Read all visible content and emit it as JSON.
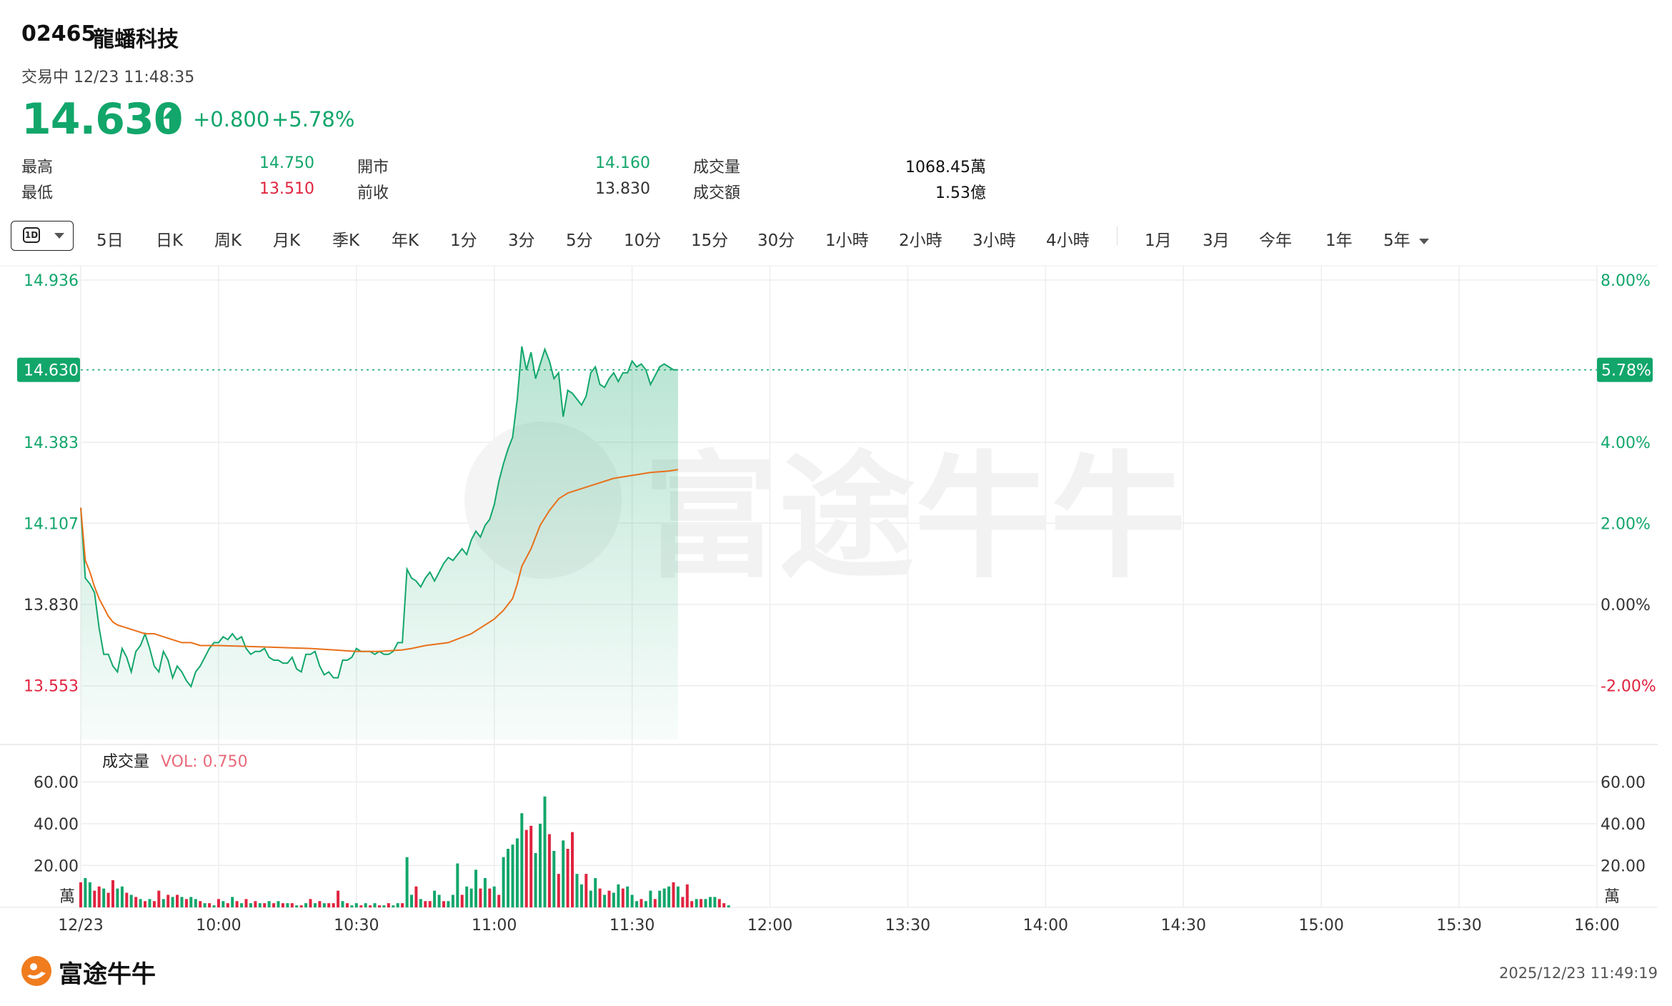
{
  "header": {
    "code": "02465",
    "name": "龍蟠科技",
    "status": "交易中 12/23 11:48:35",
    "price": "14.630",
    "change": "+0.800",
    "change_pct": "+5.78%"
  },
  "stats": [
    {
      "label": "最高",
      "value": "14.750",
      "color": "#12a66b"
    },
    {
      "label": "最低",
      "value": "13.510",
      "color": "#e0243f"
    },
    {
      "label": "開市",
      "value": "14.160",
      "color": "#12a66b"
    },
    {
      "label": "前收",
      "value": "13.830",
      "color": "#333333"
    },
    {
      "label": "成交量",
      "value": "1068.45萬",
      "color": "#111111"
    },
    {
      "label": "成交額",
      "value": "1.53億",
      "color": "#111111"
    }
  ],
  "toolbar": {
    "period_icon": "1D",
    "items": [
      "5日",
      "日K",
      "周K",
      "月K",
      "季K",
      "年K",
      "1分",
      "3分",
      "5分",
      "10分",
      "15分",
      "30分",
      "1小時",
      "2小時",
      "3小時",
      "4小時"
    ],
    "ranges": [
      "1月",
      "3月",
      "今年",
      "1年"
    ],
    "more": "5年"
  },
  "colors": {
    "up": "#12a66b",
    "down": "#e0243f",
    "avg_line": "#e8701a"
  },
  "volume_panel": {
    "label": "成交量",
    "vol_label": "VOL: 0.750",
    "unit": "萬"
  },
  "footer": {
    "logo": "富途牛牛",
    "timestamp": "2025/12/23 11:49:19"
  },
  "chart_data": {
    "type": "line",
    "prev_close": 13.83,
    "last_price": 14.63,
    "last_pct_label": "5.78%",
    "last_price_label": "14.630",
    "y_ticks": [
      14.936,
      14.383,
      14.107,
      13.83,
      13.553
    ],
    "y_tick_labels": [
      "14.936",
      "14.383",
      "14.107",
      "13.830",
      "13.553"
    ],
    "pct_ticks": [
      8.0,
      4.0,
      2.0,
      0.0,
      -2.0
    ],
    "pct_tick_labels": [
      "8.00%",
      "4.00%",
      "2.00%",
      "0.00%",
      "-2.00%"
    ],
    "x_range_minutes": [
      0,
      330
    ],
    "x_ticks": [
      {
        "t": 0,
        "label": "12/23"
      },
      {
        "t": 30,
        "label": "10:00"
      },
      {
        "t": 60,
        "label": "10:30"
      },
      {
        "t": 90,
        "label": "11:00"
      },
      {
        "t": 120,
        "label": "11:30"
      },
      {
        "t": 150,
        "label": "12:00"
      },
      {
        "t": 180,
        "label": "13:30"
      },
      {
        "t": 210,
        "label": "14:00"
      },
      {
        "t": 240,
        "label": "14:30"
      },
      {
        "t": 270,
        "label": "15:00"
      },
      {
        "t": 300,
        "label": "15:30"
      },
      {
        "t": 330,
        "label": "16:00"
      }
    ],
    "price_series": [
      [
        0,
        14.16
      ],
      [
        1,
        13.92
      ],
      [
        2,
        13.9
      ],
      [
        3,
        13.87
      ],
      [
        4,
        13.75
      ],
      [
        5,
        13.66
      ],
      [
        6,
        13.66
      ],
      [
        7,
        13.62
      ],
      [
        8,
        13.6
      ],
      [
        9,
        13.68
      ],
      [
        10,
        13.65
      ],
      [
        11,
        13.6
      ],
      [
        12,
        13.67
      ],
      [
        13,
        13.69
      ],
      [
        14,
        13.73
      ],
      [
        15,
        13.68
      ],
      [
        16,
        13.62
      ],
      [
        17,
        13.6
      ],
      [
        18,
        13.67
      ],
      [
        19,
        13.64
      ],
      [
        20,
        13.58
      ],
      [
        21,
        13.62
      ],
      [
        22,
        13.6
      ],
      [
        23,
        13.57
      ],
      [
        24,
        13.55
      ],
      [
        25,
        13.6
      ],
      [
        26,
        13.62
      ],
      [
        27,
        13.65
      ],
      [
        28,
        13.68
      ],
      [
        29,
        13.7
      ],
      [
        30,
        13.7
      ],
      [
        31,
        13.72
      ],
      [
        32,
        13.71
      ],
      [
        33,
        13.73
      ],
      [
        34,
        13.71
      ],
      [
        35,
        13.72
      ],
      [
        36,
        13.68
      ],
      [
        37,
        13.66
      ],
      [
        38,
        13.67
      ],
      [
        39,
        13.67
      ],
      [
        40,
        13.68
      ],
      [
        41,
        13.65
      ],
      [
        42,
        13.64
      ],
      [
        43,
        13.64
      ],
      [
        44,
        13.63
      ],
      [
        45,
        13.63
      ],
      [
        46,
        13.65
      ],
      [
        47,
        13.61
      ],
      [
        48,
        13.6
      ],
      [
        49,
        13.66
      ],
      [
        50,
        13.66
      ],
      [
        51,
        13.67
      ],
      [
        52,
        13.62
      ],
      [
        53,
        13.59
      ],
      [
        54,
        13.6
      ],
      [
        55,
        13.58
      ],
      [
        56,
        13.58
      ],
      [
        57,
        13.64
      ],
      [
        58,
        13.64
      ],
      [
        59,
        13.65
      ],
      [
        60,
        13.68
      ],
      [
        61,
        13.67
      ],
      [
        62,
        13.67
      ],
      [
        63,
        13.67
      ],
      [
        64,
        13.66
      ],
      [
        65,
        13.67
      ],
      [
        66,
        13.66
      ],
      [
        67,
        13.66
      ],
      [
        68,
        13.67
      ],
      [
        69,
        13.7
      ],
      [
        70,
        13.7
      ],
      [
        71,
        13.95
      ],
      [
        72,
        13.92
      ],
      [
        73,
        13.91
      ],
      [
        74,
        13.89
      ],
      [
        75,
        13.92
      ],
      [
        76,
        13.94
      ],
      [
        77,
        13.91
      ],
      [
        78,
        13.94
      ],
      [
        79,
        13.97
      ],
      [
        80,
        13.99
      ],
      [
        81,
        13.98
      ],
      [
        82,
        14.0
      ],
      [
        83,
        14.02
      ],
      [
        84,
        14.0
      ],
      [
        85,
        14.05
      ],
      [
        86,
        14.08
      ],
      [
        87,
        14.06
      ],
      [
        88,
        14.1
      ],
      [
        89,
        14.12
      ],
      [
        90,
        14.17
      ],
      [
        91,
        14.25
      ],
      [
        92,
        14.31
      ],
      [
        93,
        14.36
      ],
      [
        94,
        14.4
      ],
      [
        95,
        14.53
      ],
      [
        96,
        14.71
      ],
      [
        97,
        14.63
      ],
      [
        98,
        14.69
      ],
      [
        99,
        14.6
      ],
      [
        100,
        14.65
      ],
      [
        101,
        14.7
      ],
      [
        102,
        14.66
      ],
      [
        103,
        14.6
      ],
      [
        104,
        14.62
      ],
      [
        105,
        14.47
      ],
      [
        106,
        14.56
      ],
      [
        107,
        14.55
      ],
      [
        108,
        14.53
      ],
      [
        109,
        14.51
      ],
      [
        110,
        14.54
      ],
      [
        111,
        14.62
      ],
      [
        112,
        14.64
      ],
      [
        113,
        14.58
      ],
      [
        114,
        14.57
      ],
      [
        115,
        14.6
      ],
      [
        116,
        14.62
      ],
      [
        117,
        14.59
      ],
      [
        118,
        14.62
      ],
      [
        119,
        14.62
      ],
      [
        120,
        14.66
      ],
      [
        121,
        14.64
      ],
      [
        122,
        14.65
      ],
      [
        123,
        14.63
      ],
      [
        124,
        14.58
      ],
      [
        125,
        14.61
      ],
      [
        126,
        14.64
      ],
      [
        127,
        14.65
      ],
      [
        128,
        14.64
      ],
      [
        129,
        14.63
      ],
      [
        130,
        14.63
      ]
    ],
    "avg_series": [
      [
        0,
        14.16
      ],
      [
        1,
        13.98
      ],
      [
        2,
        13.94
      ],
      [
        3,
        13.89
      ],
      [
        4,
        13.85
      ],
      [
        5,
        13.82
      ],
      [
        6,
        13.79
      ],
      [
        7,
        13.77
      ],
      [
        8,
        13.76
      ],
      [
        10,
        13.75
      ],
      [
        12,
        13.74
      ],
      [
        14,
        13.73
      ],
      [
        16,
        13.73
      ],
      [
        18,
        13.72
      ],
      [
        20,
        13.71
      ],
      [
        22,
        13.7
      ],
      [
        24,
        13.7
      ],
      [
        26,
        13.69
      ],
      [
        30,
        13.69
      ],
      [
        40,
        13.685
      ],
      [
        50,
        13.68
      ],
      [
        55,
        13.675
      ],
      [
        60,
        13.67
      ],
      [
        65,
        13.67
      ],
      [
        70,
        13.675
      ],
      [
        72,
        13.68
      ],
      [
        75,
        13.69
      ],
      [
        80,
        13.7
      ],
      [
        85,
        13.73
      ],
      [
        88,
        13.76
      ],
      [
        90,
        13.78
      ],
      [
        92,
        13.81
      ],
      [
        94,
        13.85
      ],
      [
        95,
        13.9
      ],
      [
        96,
        13.96
      ],
      [
        98,
        14.02
      ],
      [
        100,
        14.1
      ],
      [
        102,
        14.15
      ],
      [
        104,
        14.19
      ],
      [
        106,
        14.21
      ],
      [
        108,
        14.22
      ],
      [
        112,
        14.24
      ],
      [
        116,
        14.26
      ],
      [
        120,
        14.27
      ],
      [
        124,
        14.28
      ],
      [
        128,
        14.285
      ],
      [
        130,
        14.29
      ]
    ],
    "volume_y_ticks": [
      60,
      40,
      20
    ],
    "volume_y_tick_labels": [
      "60.00",
      "40.00",
      "20.00"
    ],
    "volume_unit": "萬",
    "volume_series": [
      [
        0,
        12,
        "d"
      ],
      [
        1,
        14,
        "u"
      ],
      [
        2,
        12,
        "u"
      ],
      [
        3,
        8,
        "d"
      ],
      [
        4,
        10,
        "d"
      ],
      [
        5,
        9,
        "u"
      ],
      [
        6,
        7,
        "d"
      ],
      [
        7,
        13,
        "d"
      ],
      [
        8,
        9,
        "u"
      ],
      [
        9,
        10,
        "u"
      ],
      [
        10,
        7,
        "d"
      ],
      [
        11,
        6,
        "u"
      ],
      [
        12,
        5,
        "d"
      ],
      [
        13,
        4,
        "u"
      ],
      [
        14,
        3,
        "d"
      ],
      [
        15,
        4,
        "u"
      ],
      [
        16,
        3,
        "d"
      ],
      [
        17,
        8,
        "d"
      ],
      [
        18,
        4,
        "u"
      ],
      [
        19,
        6,
        "d"
      ],
      [
        20,
        5,
        "u"
      ],
      [
        21,
        6,
        "d"
      ],
      [
        22,
        5,
        "u"
      ],
      [
        23,
        4,
        "d"
      ],
      [
        24,
        5,
        "u"
      ],
      [
        25,
        4,
        "u"
      ],
      [
        26,
        3,
        "d"
      ],
      [
        27,
        2,
        "u"
      ],
      [
        28,
        2,
        "d"
      ],
      [
        29,
        1,
        "u"
      ],
      [
        30,
        4,
        "d"
      ],
      [
        31,
        3,
        "u"
      ],
      [
        32,
        2,
        "d"
      ],
      [
        33,
        5,
        "u"
      ],
      [
        34,
        3,
        "d"
      ],
      [
        35,
        2,
        "u"
      ],
      [
        36,
        4,
        "d"
      ],
      [
        37,
        2,
        "u"
      ],
      [
        38,
        3,
        "d"
      ],
      [
        39,
        2,
        "u"
      ],
      [
        40,
        2,
        "d"
      ],
      [
        41,
        3,
        "u"
      ],
      [
        42,
        2,
        "d"
      ],
      [
        43,
        3,
        "u"
      ],
      [
        44,
        2,
        "d"
      ],
      [
        45,
        2,
        "u"
      ],
      [
        46,
        2,
        "d"
      ],
      [
        47,
        1,
        "u"
      ],
      [
        48,
        1,
        "d"
      ],
      [
        49,
        2,
        "u"
      ],
      [
        50,
        4,
        "d"
      ],
      [
        51,
        2,
        "u"
      ],
      [
        52,
        3,
        "d"
      ],
      [
        53,
        2,
        "u"
      ],
      [
        54,
        2,
        "d"
      ],
      [
        55,
        2,
        "d"
      ],
      [
        56,
        8,
        "d"
      ],
      [
        57,
        3,
        "u"
      ],
      [
        58,
        2,
        "d"
      ],
      [
        59,
        1,
        "u"
      ],
      [
        60,
        2,
        "u"
      ],
      [
        61,
        1,
        "d"
      ],
      [
        62,
        2,
        "u"
      ],
      [
        63,
        1,
        "d"
      ],
      [
        64,
        2,
        "u"
      ],
      [
        65,
        1,
        "d"
      ],
      [
        66,
        1,
        "u"
      ],
      [
        67,
        2,
        "d"
      ],
      [
        68,
        1,
        "u"
      ],
      [
        69,
        2,
        "u"
      ],
      [
        70,
        2,
        "d"
      ],
      [
        71,
        24,
        "u"
      ],
      [
        72,
        6,
        "u"
      ],
      [
        73,
        10,
        "d"
      ],
      [
        74,
        4,
        "u"
      ],
      [
        75,
        3,
        "d"
      ],
      [
        76,
        3,
        "d"
      ],
      [
        77,
        8,
        "u"
      ],
      [
        78,
        6,
        "u"
      ],
      [
        79,
        3,
        "d"
      ],
      [
        80,
        3,
        "u"
      ],
      [
        81,
        6,
        "u"
      ],
      [
        82,
        21,
        "u"
      ],
      [
        83,
        6,
        "d"
      ],
      [
        84,
        10,
        "u"
      ],
      [
        85,
        9,
        "u"
      ],
      [
        86,
        18,
        "u"
      ],
      [
        87,
        9,
        "d"
      ],
      [
        88,
        14,
        "u"
      ],
      [
        89,
        9,
        "d"
      ],
      [
        90,
        10,
        "u"
      ],
      [
        91,
        6,
        "d"
      ],
      [
        92,
        24,
        "u"
      ],
      [
        93,
        28,
        "u"
      ],
      [
        94,
        30,
        "u"
      ],
      [
        95,
        33,
        "u"
      ],
      [
        96,
        45,
        "u"
      ],
      [
        97,
        37,
        "d"
      ],
      [
        98,
        39,
        "d"
      ],
      [
        99,
        26,
        "u"
      ],
      [
        100,
        40,
        "u"
      ],
      [
        101,
        53,
        "u"
      ],
      [
        102,
        35,
        "d"
      ],
      [
        103,
        27,
        "u"
      ],
      [
        104,
        16,
        "d"
      ],
      [
        105,
        32,
        "u"
      ],
      [
        106,
        28,
        "d"
      ],
      [
        107,
        36,
        "d"
      ],
      [
        108,
        16,
        "u"
      ],
      [
        109,
        11,
        "u"
      ],
      [
        110,
        16,
        "d"
      ],
      [
        111,
        8,
        "u"
      ],
      [
        112,
        14,
        "u"
      ],
      [
        113,
        9,
        "d"
      ],
      [
        114,
        6,
        "u"
      ],
      [
        115,
        8,
        "d"
      ],
      [
        116,
        7,
        "u"
      ],
      [
        117,
        11,
        "u"
      ],
      [
        118,
        9,
        "d"
      ],
      [
        119,
        10,
        "u"
      ],
      [
        120,
        6,
        "u"
      ],
      [
        121,
        3,
        "u"
      ],
      [
        122,
        4,
        "d"
      ],
      [
        123,
        3,
        "u"
      ],
      [
        124,
        8,
        "u"
      ],
      [
        125,
        4,
        "d"
      ],
      [
        126,
        8,
        "u"
      ],
      [
        127,
        9,
        "u"
      ],
      [
        128,
        10,
        "u"
      ],
      [
        129,
        12,
        "d"
      ],
      [
        130,
        10,
        "u"
      ],
      [
        131,
        5,
        "d"
      ],
      [
        132,
        11,
        "d"
      ],
      [
        133,
        3,
        "d"
      ],
      [
        134,
        4,
        "u"
      ],
      [
        135,
        4,
        "d"
      ],
      [
        136,
        4,
        "u"
      ],
      [
        137,
        5,
        "u"
      ],
      [
        138,
        5,
        "u"
      ],
      [
        139,
        4,
        "d"
      ],
      [
        140,
        2,
        "d"
      ],
      [
        141,
        1,
        "u"
      ]
    ]
  }
}
